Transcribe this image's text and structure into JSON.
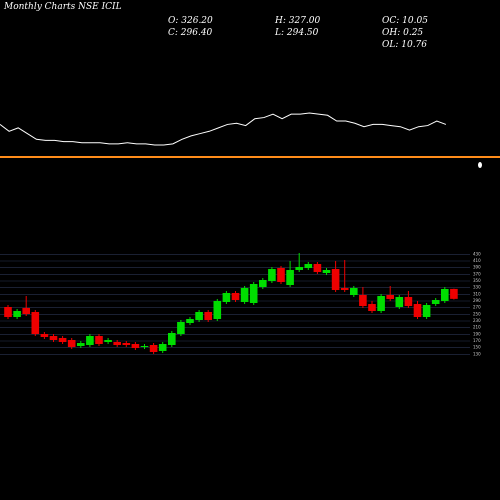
{
  "chart_data": {
    "type": "candlestick",
    "title": "Monthly Charts NSE ICIL",
    "stats": [
      "O: 326.20",
      "C: 296.40",
      "H: 327.00",
      "L: 294.50",
      "OC: 10.05",
      "OH: 0.25",
      "OL: 10.76"
    ],
    "open": [
      272,
      242,
      269,
      257,
      191,
      185,
      179,
      173,
      155,
      158,
      185,
      167,
      167,
      164,
      161,
      152,
      158,
      140,
      158,
      191,
      224,
      233,
      257,
      236,
      287,
      314,
      287,
      284,
      332,
      350,
      389,
      338,
      383,
      389,
      401,
      374,
      386,
      329,
      308,
      308,
      281,
      260,
      308,
      272,
      302,
      281,
      242,
      281,
      290,
      326.2
    ],
    "high": [
      278,
      266,
      305,
      263,
      197,
      191,
      185,
      179,
      170,
      191,
      191,
      179,
      173,
      170,
      167,
      161,
      164,
      167,
      200,
      233,
      242,
      263,
      263,
      296,
      320,
      320,
      335,
      347,
      359,
      392,
      395,
      410,
      434,
      407,
      407,
      389,
      410,
      413,
      335,
      332,
      290,
      311,
      335,
      308,
      320,
      290,
      284,
      299,
      332,
      327
    ],
    "low": [
      236,
      236,
      245,
      185,
      176,
      167,
      161,
      146,
      149,
      152,
      155,
      161,
      152,
      152,
      143,
      146,
      131,
      134,
      152,
      185,
      218,
      227,
      227,
      230,
      281,
      287,
      281,
      278,
      326,
      344,
      341,
      332,
      377,
      383,
      371,
      368,
      317,
      317,
      302,
      269,
      254,
      254,
      290,
      266,
      269,
      236,
      236,
      275,
      284,
      294.5
    ],
    "close": [
      242,
      260,
      251,
      191,
      182,
      173,
      167,
      152,
      164,
      185,
      161,
      173,
      158,
      158,
      149,
      155,
      137,
      161,
      194,
      227,
      236,
      257,
      233,
      290,
      314,
      293,
      329,
      341,
      353,
      386,
      347,
      383,
      392,
      401,
      377,
      383,
      323,
      323,
      329,
      275,
      260,
      305,
      296,
      302,
      275,
      242,
      278,
      293,
      326,
      296.4
    ],
    "up_color": "#00dd00",
    "down_color": "#ee0000",
    "indicator": {
      "color": "#ffffff",
      "values": [
        25,
        19,
        22,
        17,
        12,
        11,
        11,
        10,
        10,
        9,
        9,
        9,
        8,
        8,
        9,
        8,
        8,
        7,
        7,
        8,
        12,
        15,
        17,
        19,
        22,
        25,
        26,
        24,
        30,
        31,
        34,
        30,
        34,
        34,
        35,
        34,
        33,
        28,
        28,
        26,
        23,
        25,
        25,
        24,
        23,
        20,
        23,
        24,
        28,
        25
      ]
    },
    "ylim": [
      125,
      440
    ],
    "yticks": [
      130,
      150,
      170,
      190,
      210,
      230,
      250,
      270,
      290,
      310,
      330,
      350,
      370,
      390,
      410,
      430
    ],
    "grid": true
  }
}
